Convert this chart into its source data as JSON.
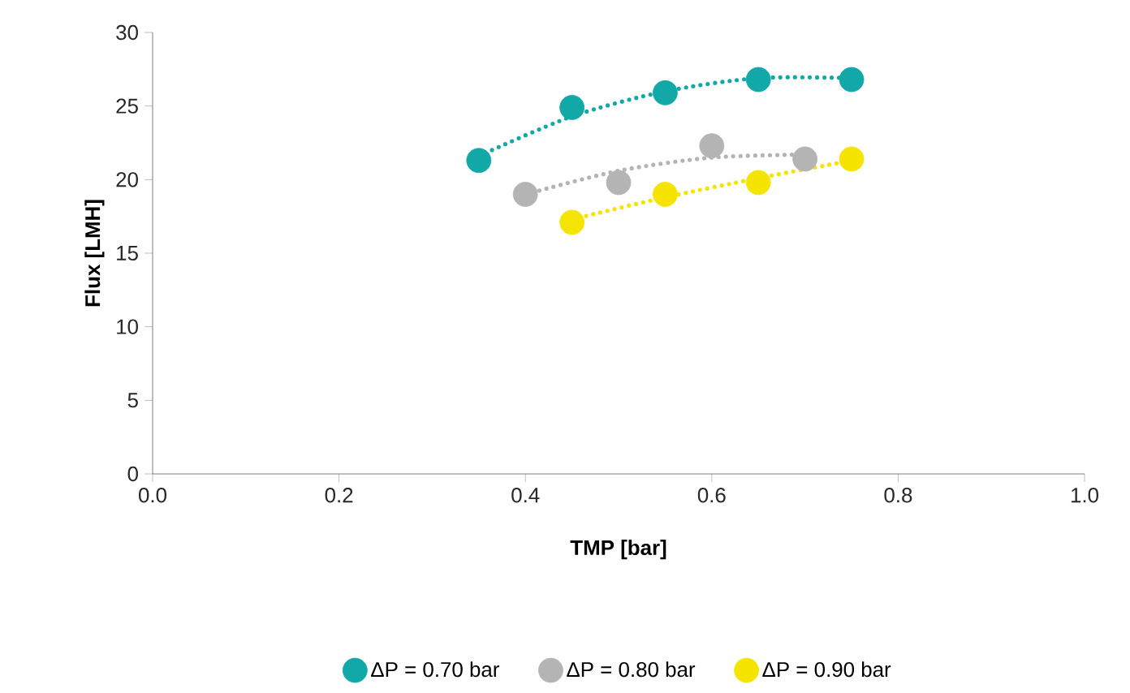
{
  "chart_data": {
    "type": "scatter",
    "xlabel": "TMP [bar]",
    "ylabel": "Flux [LMH]",
    "xlim": [
      0,
      1
    ],
    "ylim": [
      0,
      30
    ],
    "xticks": [
      {
        "value": 0,
        "label": "0.0"
      },
      {
        "value": 0.2,
        "label": "0.2"
      },
      {
        "value": 0.4,
        "label": "0.4"
      },
      {
        "value": 0.6,
        "label": "0.6"
      },
      {
        "value": 0.8,
        "label": "0.8"
      },
      {
        "value": 1,
        "label": "1.0"
      }
    ],
    "yticks": [
      0,
      5,
      10,
      15,
      20,
      25,
      30
    ],
    "grid": false,
    "legend": "bottom",
    "marker": "circle",
    "series": [
      {
        "type": "line",
        "line_style": "dotted",
        "marker": "none",
        "color": "#13a8a8",
        "x": [
          0.35,
          0.45,
          0.55,
          0.65,
          0.75
        ],
        "values": [
          21.6,
          24.3,
          26.0,
          26.9,
          26.9
        ]
      },
      {
        "type": "line",
        "line_style": "dotted",
        "marker": "none",
        "color": "#b4b4b4",
        "x": [
          0.4,
          0.5,
          0.6,
          0.7
        ],
        "values": [
          19.0,
          20.6,
          21.5,
          21.7
        ]
      },
      {
        "type": "line",
        "line_style": "dotted",
        "marker": "none",
        "color": "#f5e400",
        "x": [
          0.45,
          0.55,
          0.65,
          0.75
        ],
        "values": [
          17.3,
          18.8,
          20.1,
          21.3
        ]
      },
      {
        "name": "ΔP = 0.70 bar",
        "color": "#13a8a8",
        "x": [
          0.35,
          0.45,
          0.55,
          0.65,
          0.75
        ],
        "values": [
          21.3,
          24.9,
          25.9,
          26.8,
          26.8
        ]
      },
      {
        "name": "ΔP = 0.80 bar",
        "color": "#b4b4b4",
        "x": [
          0.4,
          0.5,
          0.6,
          0.7
        ],
        "values": [
          19.0,
          19.8,
          22.3,
          21.4
        ]
      },
      {
        "name": "ΔP = 0.90 bar",
        "color": "#f5e400",
        "x": [
          0.45,
          0.55,
          0.65,
          0.75
        ],
        "values": [
          17.1,
          19.0,
          19.8,
          21.4
        ]
      }
    ]
  }
}
